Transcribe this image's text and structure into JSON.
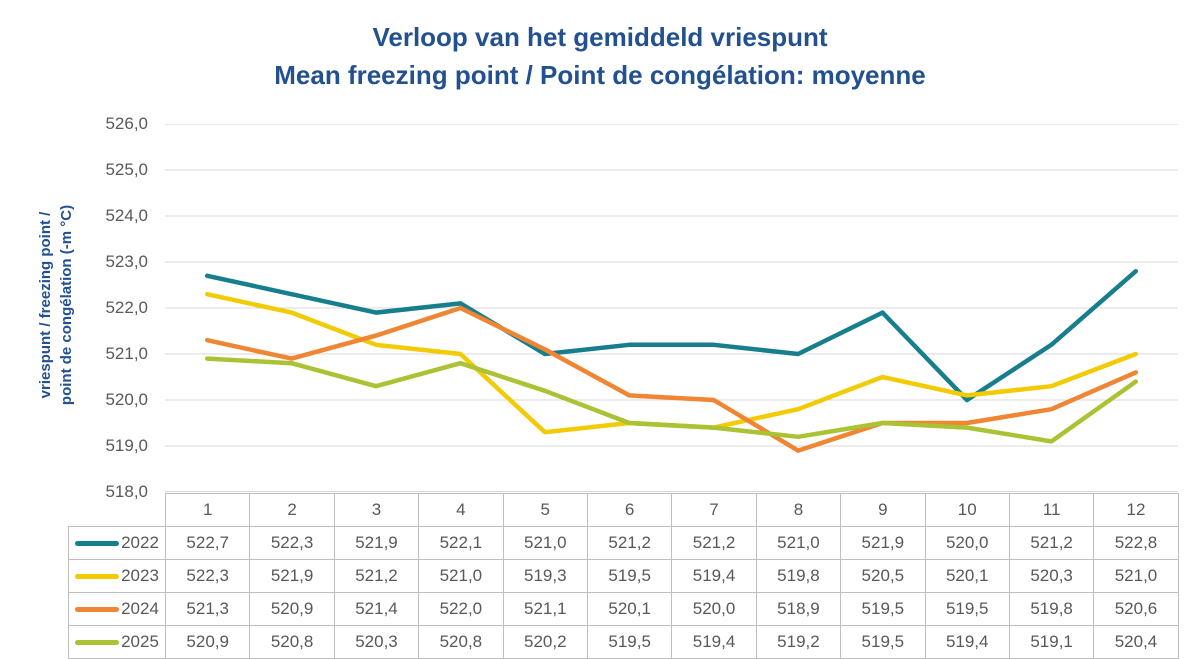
{
  "title": {
    "line1": "Verloop van het gemiddeld vriespunt",
    "line2": "Mean freezing point / Point de congélation: moyenne"
  },
  "y_axis": {
    "label_line1": "vriespunt / freezing point /",
    "label_line2": "point de congélation (-m °C)",
    "tick_labels": [
      "526,0",
      "525,0",
      "524,0",
      "523,0",
      "522,0",
      "521,0",
      "520,0",
      "519,0",
      "518,0"
    ]
  },
  "colors": {
    "title_text": "#23518F",
    "axis_text": "#595959",
    "gridline": "#D9D9D9",
    "table_border": "#BFBFBF",
    "table_text": "#595959",
    "series_2022": "#177E8D",
    "series_2023": "#F2CB05",
    "series_2024": "#F08533",
    "series_2025": "#AAC234"
  },
  "chart_data": {
    "type": "line",
    "title": "Verloop van het gemiddeld vriespunt — Mean freezing point / Point de congélation: moyenne",
    "xlabel": "",
    "ylabel": "vriespunt / freezing point / point de congélation (-m °C)",
    "categories": [
      1,
      2,
      3,
      4,
      5,
      6,
      7,
      8,
      9,
      10,
      11,
      12
    ],
    "ylim": [
      518.0,
      526.0
    ],
    "ytick_step": 1.0,
    "grid": "horizontal-only",
    "legend_position": "table-left-column",
    "series": [
      {
        "name": "2022",
        "color": "#177E8D",
        "values": [
          522.7,
          522.3,
          521.9,
          522.1,
          521.0,
          521.2,
          521.2,
          521.0,
          521.9,
          520.0,
          521.2,
          522.8
        ]
      },
      {
        "name": "2023",
        "color": "#F2CB05",
        "values": [
          522.3,
          521.9,
          521.2,
          521.0,
          519.3,
          519.5,
          519.4,
          519.8,
          520.5,
          520.1,
          520.3,
          521.0
        ]
      },
      {
        "name": "2024",
        "color": "#F08533",
        "values": [
          521.3,
          520.9,
          521.4,
          522.0,
          521.1,
          520.1,
          520.0,
          518.9,
          519.5,
          519.5,
          519.8,
          520.6
        ]
      },
      {
        "name": "2025",
        "color": "#AAC234",
        "values": [
          520.9,
          520.8,
          520.3,
          520.8,
          520.2,
          519.5,
          519.4,
          519.2,
          519.5,
          519.4,
          519.1,
          520.4
        ]
      }
    ]
  },
  "table": {
    "month_headers": [
      "1",
      "2",
      "3",
      "4",
      "5",
      "6",
      "7",
      "8",
      "9",
      "10",
      "11",
      "12"
    ],
    "rows": [
      {
        "year": "2022",
        "values": [
          "522,7",
          "522,3",
          "521,9",
          "522,1",
          "521,0",
          "521,2",
          "521,2",
          "521,0",
          "521,9",
          "520,0",
          "521,2",
          "522,8"
        ]
      },
      {
        "year": "2023",
        "values": [
          "522,3",
          "521,9",
          "521,2",
          "521,0",
          "519,3",
          "519,5",
          "519,4",
          "519,8",
          "520,5",
          "520,1",
          "520,3",
          "521,0"
        ]
      },
      {
        "year": "2024",
        "values": [
          "521,3",
          "520,9",
          "521,4",
          "522,0",
          "521,1",
          "520,1",
          "520,0",
          "518,9",
          "519,5",
          "519,5",
          "519,8",
          "520,6"
        ]
      },
      {
        "year": "2025",
        "values": [
          "520,9",
          "520,8",
          "520,3",
          "520,8",
          "520,2",
          "519,5",
          "519,4",
          "519,2",
          "519,5",
          "519,4",
          "519,1",
          "520,4"
        ]
      }
    ]
  }
}
